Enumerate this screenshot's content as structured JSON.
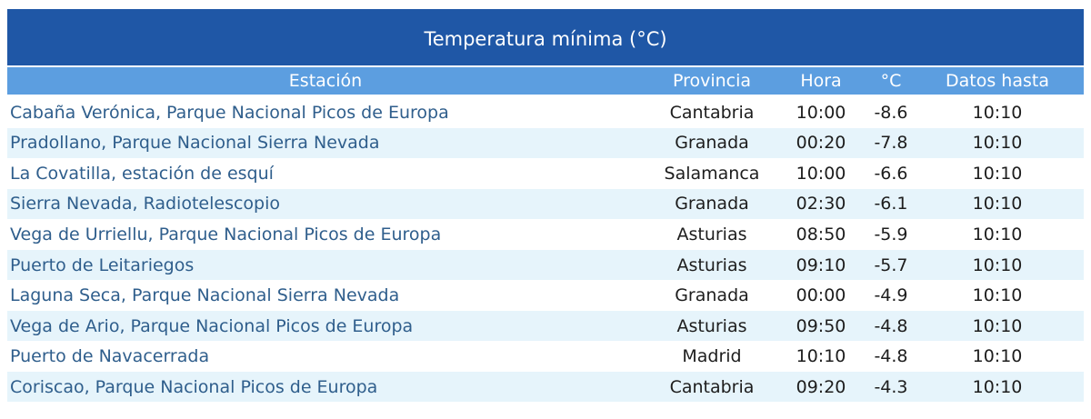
{
  "table": {
    "title": "Temperatura mínima (°C)",
    "header": [
      "Estación",
      "Provincia",
      "Hora",
      "°C",
      "Datos hasta"
    ],
    "rows": [
      [
        "Cabaña Verónica, Parque Nacional Picos de Europa",
        "Cantabria",
        "10:00",
        -8.6,
        "10:10"
      ],
      [
        "Pradollano, Parque Nacional Sierra Nevada",
        "Granada",
        "00:20",
        -7.8,
        "10:10"
      ],
      [
        "La Covatilla, estación de esquí",
        "Salamanca",
        "10:00",
        -6.6,
        "10:10"
      ],
      [
        "Sierra Nevada, Radiotelescopio",
        "Granada",
        "02:30",
        -6.1,
        "10:10"
      ],
      [
        "Vega de Urriellu, Parque Nacional Picos de Europa",
        "Asturias",
        "08:50",
        -5.9,
        "10:10"
      ],
      [
        "Puerto de Leitariegos",
        "Asturias",
        "09:10",
        -5.7,
        "10:10"
      ],
      [
        "Laguna Seca, Parque Nacional Sierra Nevada",
        "Granada",
        "00:00",
        -4.9,
        "10:10"
      ],
      [
        "Vega de Ario, Parque Nacional Picos de Europa",
        "Asturias",
        "09:50",
        -4.8,
        "10:10"
      ],
      [
        "Puerto de Navacerrada",
        "Madrid",
        "10:10",
        -4.8,
        "10:10"
      ],
      [
        "Coriscao, Parque Nacional Picos de Europa",
        "Cantabria",
        "09:20",
        -4.3,
        "10:10"
      ]
    ]
  }
}
